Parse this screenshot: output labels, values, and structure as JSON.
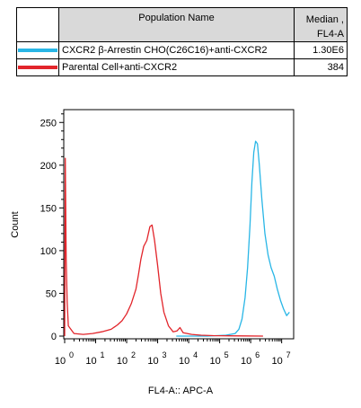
{
  "legend": {
    "header_name": "Population Name",
    "header_median_line1": "Median ,",
    "header_median_line2": "FL4-A",
    "rows": [
      {
        "name": "CXCR2 β-Arrestin CHO(C26C16)+anti-CXCR2",
        "median": "1.30E6",
        "color": "#29b6e6"
      },
      {
        "name": "Parental Cell+anti-CXCR2",
        "median": "384",
        "color": "#e2252b"
      }
    ]
  },
  "chart_data": {
    "type": "line",
    "xlabel": "FL4-A:: APC-A",
    "ylabel": "Count",
    "x_scale": "log",
    "xlim": [
      0,
      7.3
    ],
    "ylim": [
      0,
      265
    ],
    "y_ticks": [
      0,
      50,
      100,
      150,
      200,
      250
    ],
    "x_ticks": [
      {
        "base": "10",
        "exp": "0",
        "pos": 0
      },
      {
        "base": "10",
        "exp": "1",
        "pos": 1
      },
      {
        "base": "10",
        "exp": "2",
        "pos": 2
      },
      {
        "base": "10",
        "exp": "3",
        "pos": 3
      },
      {
        "base": "10",
        "exp": "4",
        "pos": 4
      },
      {
        "base": "10",
        "exp": "5",
        "pos": 5
      },
      {
        "base": "10",
        "exp": "6",
        "pos": 6
      },
      {
        "base": "10",
        "exp": "7",
        "pos": 7
      }
    ],
    "series": [
      {
        "name": "CXCR2 β-Arrestin CHO(C26C16)+anti-CXCR2",
        "color": "#29b6e6",
        "points": [
          [
            3.6,
            0
          ],
          [
            4.6,
            0
          ],
          [
            5.2,
            1
          ],
          [
            5.5,
            3
          ],
          [
            5.62,
            8
          ],
          [
            5.72,
            20
          ],
          [
            5.82,
            45
          ],
          [
            5.9,
            80
          ],
          [
            5.98,
            130
          ],
          [
            6.04,
            180
          ],
          [
            6.1,
            215
          ],
          [
            6.16,
            228
          ],
          [
            6.22,
            225
          ],
          [
            6.28,
            200
          ],
          [
            6.36,
            160
          ],
          [
            6.46,
            120
          ],
          [
            6.56,
            95
          ],
          [
            6.66,
            80
          ],
          [
            6.76,
            70
          ],
          [
            6.86,
            55
          ],
          [
            6.96,
            42
          ],
          [
            7.06,
            32
          ],
          [
            7.16,
            24
          ],
          [
            7.25,
            28
          ]
        ]
      },
      {
        "name": "Parental Cell+anti-CXCR2",
        "color": "#e2252b",
        "points": [
          [
            0,
            0
          ],
          [
            0.02,
            208
          ],
          [
            0.05,
            90
          ],
          [
            0.08,
            40
          ],
          [
            0.12,
            12
          ],
          [
            0.3,
            3
          ],
          [
            0.6,
            2
          ],
          [
            0.9,
            3
          ],
          [
            1.2,
            5
          ],
          [
            1.5,
            8
          ],
          [
            1.7,
            13
          ],
          [
            1.85,
            18
          ],
          [
            2.0,
            26
          ],
          [
            2.15,
            38
          ],
          [
            2.3,
            55
          ],
          [
            2.38,
            72
          ],
          [
            2.46,
            90
          ],
          [
            2.55,
            105
          ],
          [
            2.65,
            112
          ],
          [
            2.75,
            128
          ],
          [
            2.82,
            130
          ],
          [
            2.9,
            112
          ],
          [
            3.0,
            82
          ],
          [
            3.1,
            50
          ],
          [
            3.2,
            28
          ],
          [
            3.35,
            12
          ],
          [
            3.5,
            5
          ],
          [
            3.62,
            6
          ],
          [
            3.72,
            10
          ],
          [
            3.82,
            4
          ],
          [
            3.95,
            3
          ],
          [
            4.1,
            2
          ],
          [
            4.4,
            1
          ],
          [
            4.8,
            0.5
          ],
          [
            5.3,
            0.3
          ],
          [
            5.8,
            0.2
          ],
          [
            6.4,
            0
          ]
        ]
      }
    ]
  }
}
